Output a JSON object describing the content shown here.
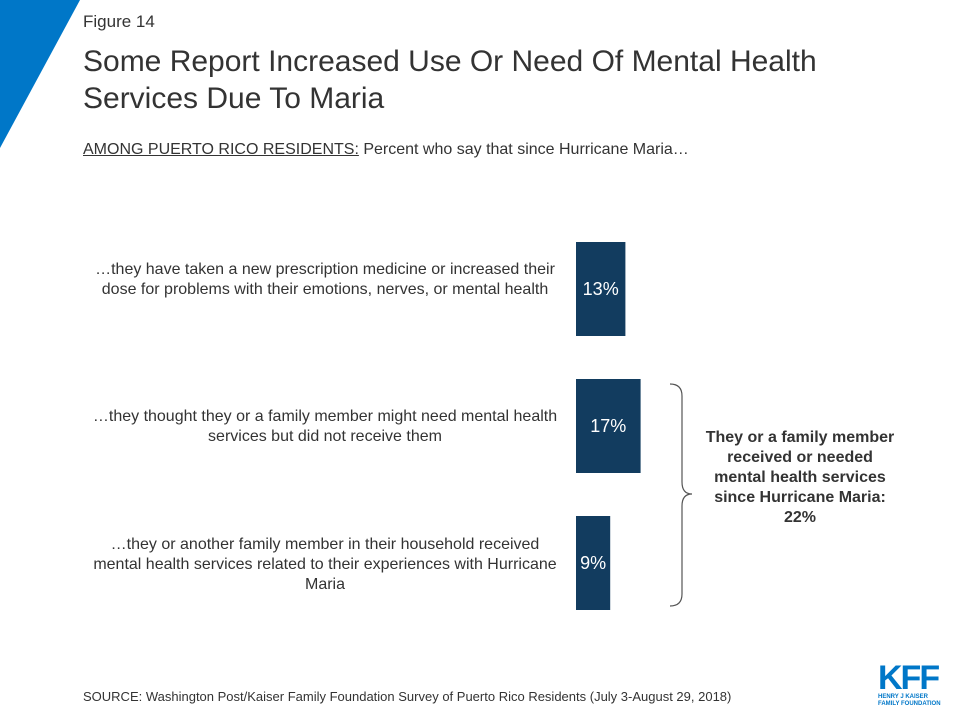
{
  "header": {
    "figure_label": "Figure 14",
    "title": "Some Report Increased Use Or Need Of Mental Health Services Due To Maria",
    "subtitle_prefix": "AMONG PUERTO RICO RESIDENTS:",
    "subtitle_rest": " Percent who say that since Hurricane Maria…"
  },
  "chart_data": {
    "type": "bar",
    "orientation": "horizontal",
    "categories": [
      "…they have taken a new prescription medicine or increased their dose for problems with their emotions, nerves, or mental health",
      "…they thought they or a family member might need mental health services but did not receive them",
      "…they or another family member in their household received mental health services related to their experiences with Hurricane Maria"
    ],
    "values": [
      13,
      17,
      9
    ],
    "value_labels": [
      "13%",
      "17%",
      "9%"
    ],
    "bar_color": "#123c5f",
    "label_color": "#ffffff",
    "grid": false,
    "annotation": {
      "text": "They or a family member received or needed mental health services since Hurricane Maria: 22%",
      "spans_categories": [
        1,
        2
      ]
    }
  },
  "footer": {
    "source": "SOURCE: Washington Post/Kaiser Family Foundation Survey of Puerto Rico Residents (July 3-August 29, 2018)",
    "logo_mark": "KFF",
    "logo_line1": "HENRY J KAISER",
    "logo_line2": "FAMILY FOUNDATION",
    "brand_color": "#0077c8"
  }
}
